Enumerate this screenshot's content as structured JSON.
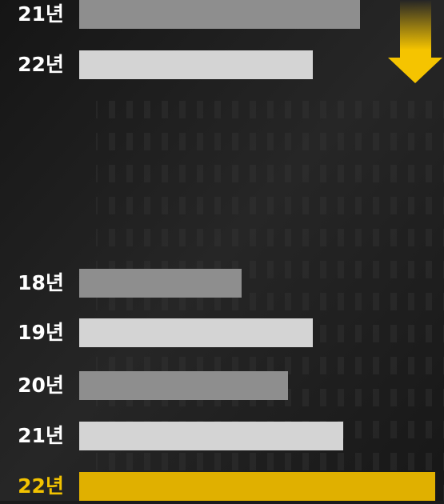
{
  "chart_data": [
    {
      "type": "hbar",
      "categories": [
        "21년",
        "22년"
      ],
      "values": [
        35.1,
        29.2
      ],
      "colors": [
        "#8e8e8e",
        "#d4d4d4"
      ],
      "label_colors": [
        "#ffffff",
        "#ffffff"
      ]
    },
    {
      "type": "hbar",
      "categories": [
        "18년",
        "19년",
        "20년",
        "21년",
        "22년"
      ],
      "values": [
        20.3,
        29.2,
        26.1,
        33.0,
        44.5
      ],
      "colors": [
        "#8e8e8e",
        "#d4d4d4",
        "#8e8e8e",
        "#d4d4d4",
        "#e0b000"
      ],
      "label_colors": [
        "#ffffff",
        "#ffffff",
        "#ffffff",
        "#ffffff",
        "#f2c200"
      ]
    }
  ]
}
